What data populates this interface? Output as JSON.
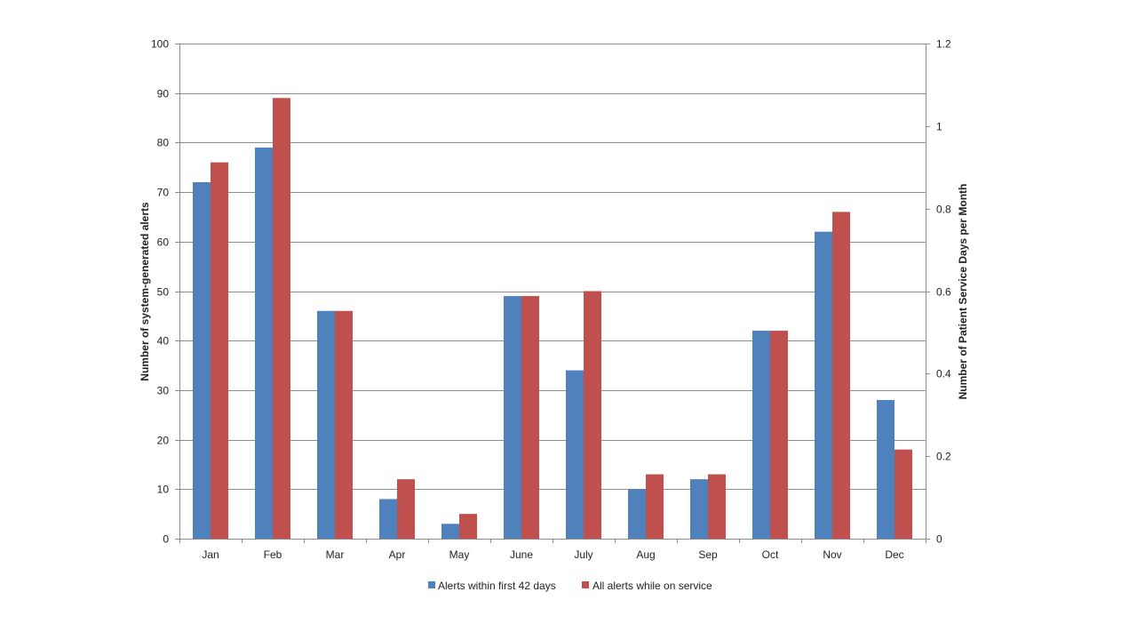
{
  "chart_data": {
    "type": "bar",
    "categories": [
      "Jan",
      "Feb",
      "Mar",
      "Apr",
      "May",
      "June",
      "July",
      "Aug",
      "Sep",
      "Oct",
      "Nov",
      "Dec"
    ],
    "series": [
      {
        "name": "Alerts within first 42 days",
        "color": "#4f81bd",
        "values": [
          72,
          79,
          46,
          8,
          3,
          49,
          34,
          10,
          12,
          42,
          62,
          28
        ]
      },
      {
        "name": "All alerts while on service",
        "color": "#c0504d",
        "values": [
          76,
          89,
          46,
          12,
          5,
          49,
          50,
          13,
          13,
          42,
          66,
          18
        ]
      }
    ],
    "ylabel": "Number of system-generated alerts",
    "y2label": "Number of Patient Service Days per Month",
    "ylim": [
      0,
      100
    ],
    "y2lim": [
      0,
      1.2
    ],
    "yticks": [
      "0",
      "10",
      "20",
      "30",
      "40",
      "50",
      "60",
      "70",
      "80",
      "90",
      "100"
    ],
    "y2ticks": [
      "0",
      "0.2",
      "0.4",
      "0.6",
      "0.8",
      "1",
      "1.2"
    ],
    "grid": true,
    "legend_position": "bottom"
  }
}
